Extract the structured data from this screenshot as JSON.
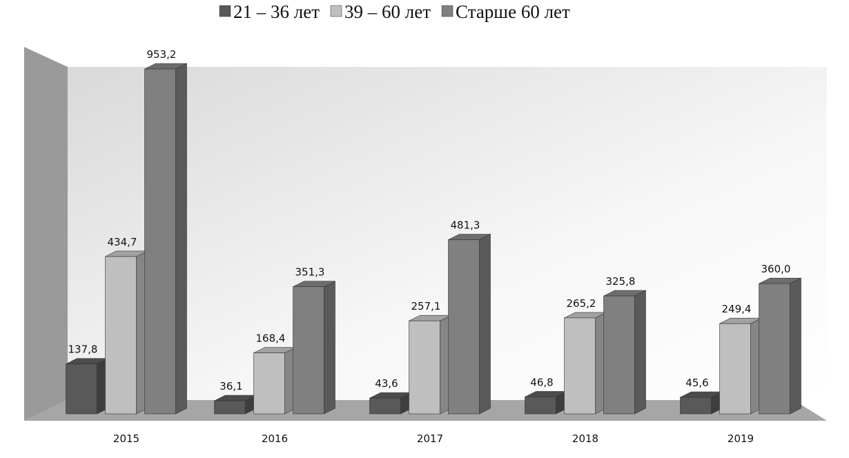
{
  "chart_data": {
    "type": "bar3d",
    "categories": [
      "2015",
      "2016",
      "2017",
      "2018",
      "2019"
    ],
    "series": [
      {
        "name": "21 – 36 лет",
        "color": "#595959",
        "values": [
          137.8,
          36.1,
          43.6,
          46.8,
          45.6
        ],
        "value_labels": [
          "137,8",
          "36,1",
          "43,6",
          "46,8",
          "45,6"
        ]
      },
      {
        "name": "39 – 60 лет",
        "color": "#bfbfbf",
        "values": [
          434.7,
          168.4,
          257.1,
          265.2,
          249.4
        ],
        "value_labels": [
          "434,7",
          "168,4",
          "257,1",
          "265,2",
          "249,4"
        ]
      },
      {
        "name": "Старше 60 лет",
        "color": "#808080",
        "values": [
          953.2,
          351.3,
          481.3,
          325.8,
          360.0
        ],
        "value_labels": [
          "953,2",
          "351,3",
          "481,3",
          "325,8",
          "360,0"
        ]
      }
    ],
    "legend": "top"
  }
}
